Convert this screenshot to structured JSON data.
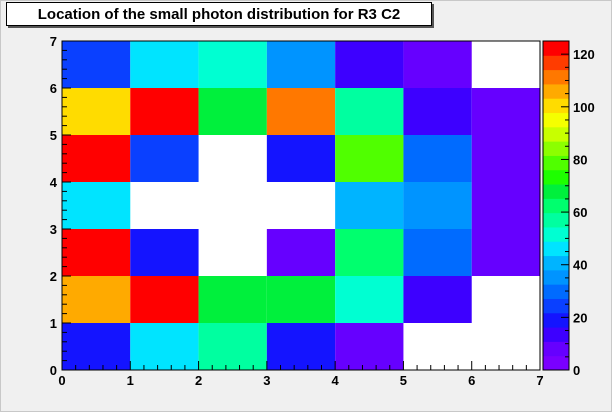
{
  "chart_data": {
    "type": "heatmap",
    "title": "Location of the small photon distribution for R3 C2",
    "xlabel": "",
    "ylabel": "",
    "xlim": [
      0,
      7
    ],
    "ylim": [
      0,
      7
    ],
    "x_ticks": [
      "0",
      "1",
      "2",
      "3",
      "4",
      "5",
      "6",
      "7"
    ],
    "y_ticks": [
      "0",
      "1",
      "2",
      "3",
      "4",
      "5",
      "6",
      "7"
    ],
    "cells": [
      {
        "x": 0,
        "y": 0,
        "value": 18
      },
      {
        "x": 1,
        "y": 0,
        "value": 47
      },
      {
        "x": 2,
        "y": 0,
        "value": 57
      },
      {
        "x": 3,
        "y": 0,
        "value": 20
      },
      {
        "x": 4,
        "y": 0,
        "value": 10
      },
      {
        "x": 0,
        "y": 1,
        "value": 108
      },
      {
        "x": 1,
        "y": 1,
        "value": 120
      },
      {
        "x": 2,
        "y": 1,
        "value": 67
      },
      {
        "x": 3,
        "y": 1,
        "value": 67
      },
      {
        "x": 4,
        "y": 1,
        "value": 52
      },
      {
        "x": 5,
        "y": 1,
        "value": 12
      },
      {
        "x": 0,
        "y": 2,
        "value": 120
      },
      {
        "x": 1,
        "y": 2,
        "value": 18
      },
      {
        "x": 3,
        "y": 2,
        "value": 10
      },
      {
        "x": 4,
        "y": 2,
        "value": 65
      },
      {
        "x": 5,
        "y": 2,
        "value": 30
      },
      {
        "x": 6,
        "y": 2,
        "value": 6
      },
      {
        "x": 0,
        "y": 3,
        "value": 47
      },
      {
        "x": 4,
        "y": 3,
        "value": 42
      },
      {
        "x": 5,
        "y": 3,
        "value": 35
      },
      {
        "x": 6,
        "y": 3,
        "value": 6
      },
      {
        "x": 0,
        "y": 4,
        "value": 120
      },
      {
        "x": 1,
        "y": 4,
        "value": 22
      },
      {
        "x": 3,
        "y": 4,
        "value": 20
      },
      {
        "x": 4,
        "y": 4,
        "value": 78
      },
      {
        "x": 5,
        "y": 4,
        "value": 30
      },
      {
        "x": 6,
        "y": 4,
        "value": 6
      },
      {
        "x": 0,
        "y": 5,
        "value": 100
      },
      {
        "x": 1,
        "y": 5,
        "value": 120
      },
      {
        "x": 2,
        "y": 5,
        "value": 70
      },
      {
        "x": 3,
        "y": 5,
        "value": 114
      },
      {
        "x": 4,
        "y": 5,
        "value": 58
      },
      {
        "x": 5,
        "y": 5,
        "value": 12
      },
      {
        "x": 6,
        "y": 5,
        "value": 6
      },
      {
        "x": 0,
        "y": 6,
        "value": 22
      },
      {
        "x": 1,
        "y": 6,
        "value": 47
      },
      {
        "x": 2,
        "y": 6,
        "value": 52
      },
      {
        "x": 3,
        "y": 6,
        "value": 37
      },
      {
        "x": 4,
        "y": 6,
        "value": 12
      },
      {
        "x": 5,
        "y": 6,
        "value": 6
      }
    ],
    "z_range": [
      0,
      125
    ],
    "z_ticks": [
      "0",
      "20",
      "40",
      "60",
      "80",
      "100",
      "120"
    ],
    "z_tick_values": [
      0,
      20,
      40,
      60,
      80,
      100,
      120
    ],
    "palette": [
      "#7a00ff",
      "#6600ff",
      "#3d00ff",
      "#1414ff",
      "#0a40ff",
      "#006bff",
      "#0094ff",
      "#00b4ff",
      "#00e4ff",
      "#00ffd2",
      "#00ffa0",
      "#00ff6e",
      "#00f03c",
      "#1eff00",
      "#50ff00",
      "#8cff00",
      "#c8ff00",
      "#f5ff00",
      "#ffdc00",
      "#ffaa00",
      "#ff7800",
      "#ff3c00",
      "#ff0000"
    ],
    "empty_color": "#ffffff",
    "grid": false,
    "legend": "right color scale"
  }
}
